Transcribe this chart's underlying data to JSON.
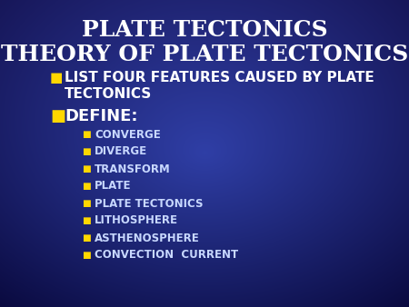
{
  "title_line1": "PLATE TECTONICS",
  "title_line2": "THEORY OF PLATE TECTONICS",
  "title_color": "#FFFFFF",
  "title_fontsize": 18,
  "bg_color": "#0A0A6A",
  "bg_color_mid": "#1A3A9A",
  "bullet_color": "#FFD700",
  "level1_text_color": "#FFFFFF",
  "level2_text_color": "#C8D8FF",
  "level1_fontsize": 11,
  "level2_fontsize": 8.5,
  "bullet_square": "■",
  "level1_items_line1": "LIST FOUR FEATURES CAUSED BY PLATE",
  "level1_items_line2": "TECTONICS",
  "level1_item2": "DEFINE:",
  "level2_items": [
    "CONVERGE",
    "DIVERGE",
    "TRANSFORM",
    "PLATE",
    "PLATE TECTONICS",
    "LITHOSPHERE",
    "ASTHENOSPHERE",
    "CONVECTION  CURRENT"
  ]
}
